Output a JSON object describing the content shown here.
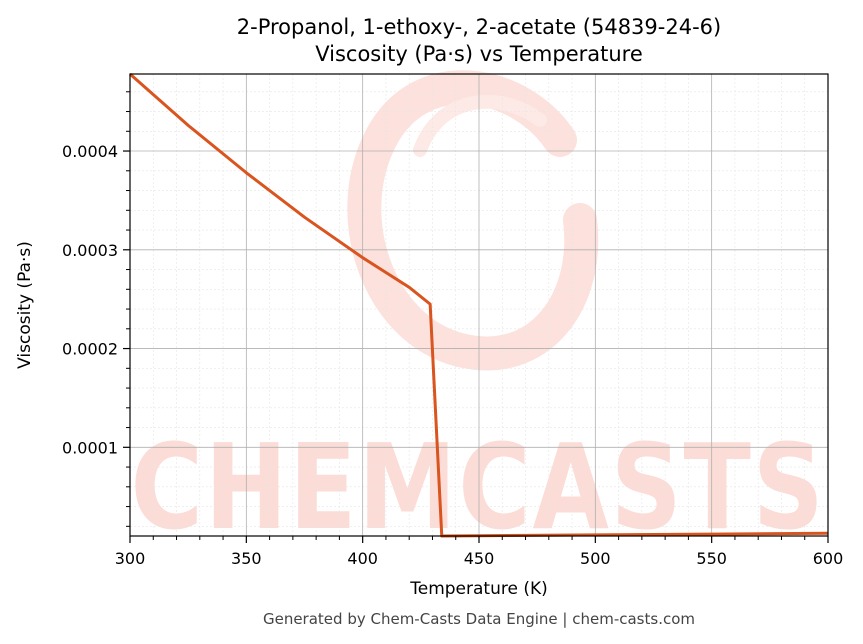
{
  "chart_data": {
    "type": "line",
    "title": "2-Propanol, 1-ethoxy-, 2-acetate (54839-24-6)",
    "subtitle": "Viscosity (Pa·s) vs Temperature",
    "xlabel": "Temperature (K)",
    "ylabel": "Viscosity (Pa·s)",
    "xlim": [
      300,
      600
    ],
    "ylim": [
      1.02e-05,
      0.000478
    ],
    "xticks": [
      300,
      350,
      400,
      450,
      500,
      550,
      600
    ],
    "xtick_labels": [
      "300",
      "350",
      "400",
      "450",
      "500",
      "550",
      "600"
    ],
    "yticks": [
      0.0001,
      0.0002,
      0.0003,
      0.0004
    ],
    "ytick_labels": [
      "0.0001",
      "0.0002",
      "0.0003",
      "0.0004"
    ],
    "grid": true,
    "color": "#d9541e",
    "x": [
      300,
      325,
      350,
      375,
      400,
      420,
      429,
      434,
      435,
      450,
      500,
      550,
      600
    ],
    "y": [
      0.000478,
      0.000426,
      0.000378,
      0.000333,
      0.000292,
      0.000262,
      0.000245,
      1.02e-05,
      1.02e-05,
      1.05e-05,
      1.13e-05,
      1.21e-05,
      1.3e-05
    ]
  },
  "watermark": {
    "text": "CHEMCASTS",
    "color": "#fcdcd6"
  },
  "footer": "Generated by Chem-Casts Data Engine | chem-casts.com"
}
